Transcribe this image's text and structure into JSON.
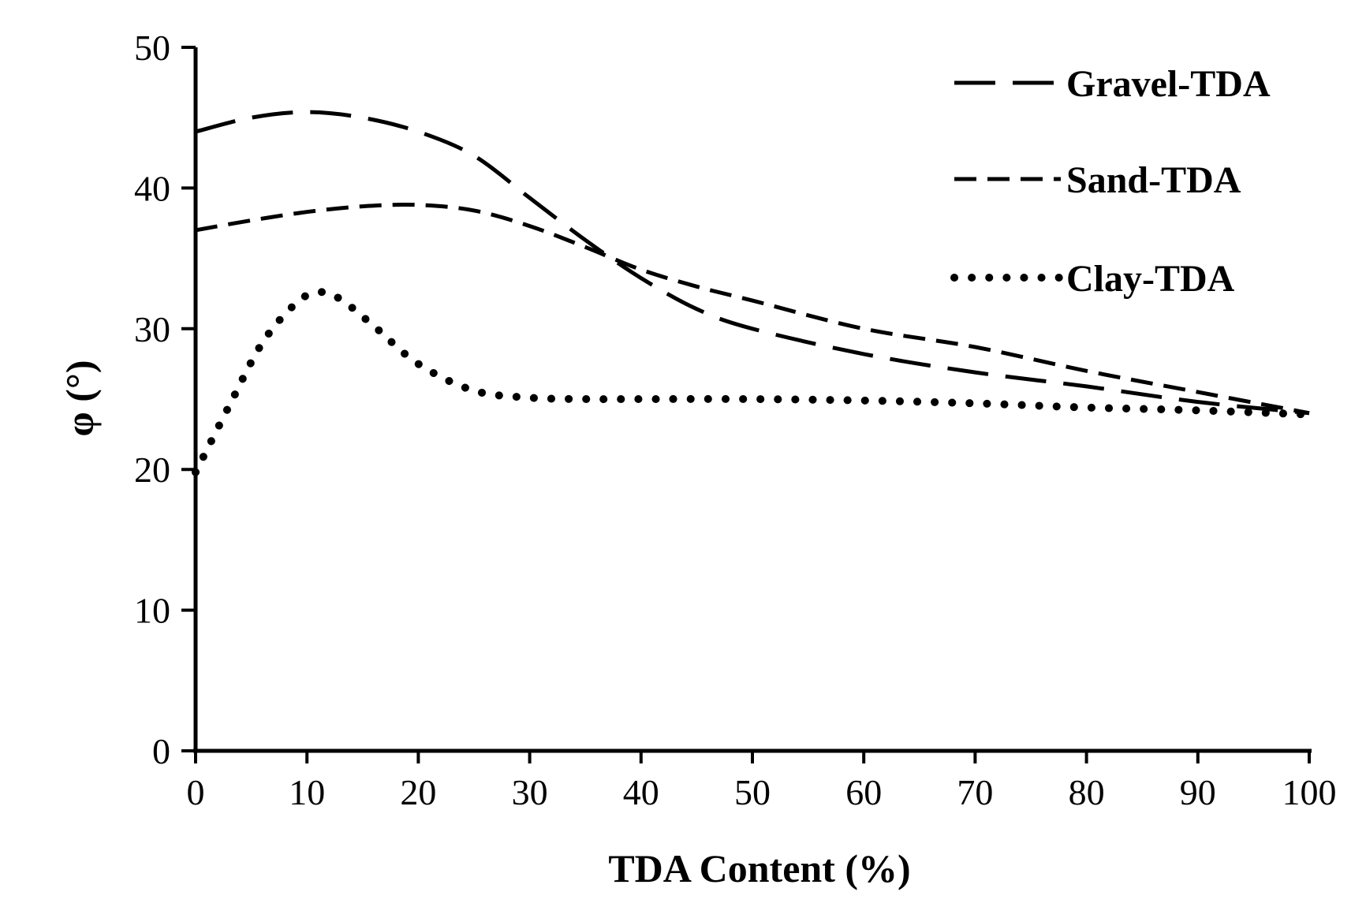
{
  "chart_data": {
    "type": "line",
    "xlabel": "TDA Content (%)",
    "ylabel": "φ (°)",
    "xlim": [
      0,
      100
    ],
    "ylim": [
      0,
      50
    ],
    "xticks": [
      "0",
      "10",
      "20",
      "30",
      "40",
      "50",
      "60",
      "70",
      "80",
      "90",
      "100"
    ],
    "yticks": [
      "0",
      "10",
      "20",
      "30",
      "40",
      "50"
    ],
    "grid": false,
    "legend_position": "top-right",
    "series": [
      {
        "name": "Gravel-TDA",
        "style": "long-dash",
        "x": [
          0,
          5,
          10,
          15,
          20,
          25,
          30,
          35,
          40,
          45,
          50,
          60,
          70,
          80,
          90,
          100
        ],
        "y": [
          44,
          45,
          45.4,
          45,
          44,
          42.3,
          39.3,
          36.3,
          33.6,
          31.4,
          30,
          28.2,
          26.9,
          25.9,
          24.8,
          24
        ]
      },
      {
        "name": "Sand-TDA",
        "style": "short-dash",
        "x": [
          0,
          5,
          10,
          15,
          20,
          25,
          30,
          35,
          40,
          45,
          50,
          60,
          70,
          80,
          90,
          100
        ],
        "y": [
          37,
          37.7,
          38.3,
          38.7,
          38.8,
          38.4,
          37.3,
          35.8,
          34.2,
          33,
          32,
          30,
          28.7,
          27,
          25.5,
          24
        ]
      },
      {
        "name": "Clay-TDA",
        "style": "dotted",
        "x": [
          0,
          3,
          6,
          9,
          11,
          13,
          16,
          20,
          25,
          30,
          35,
          40,
          50,
          60,
          70,
          80,
          90,
          100
        ],
        "y": [
          19.8,
          24.5,
          29,
          31.8,
          32.6,
          32.1,
          30.2,
          27.5,
          25.6,
          25.1,
          25,
          25,
          25,
          24.9,
          24.7,
          24.4,
          24.2,
          23.9
        ]
      }
    ]
  }
}
